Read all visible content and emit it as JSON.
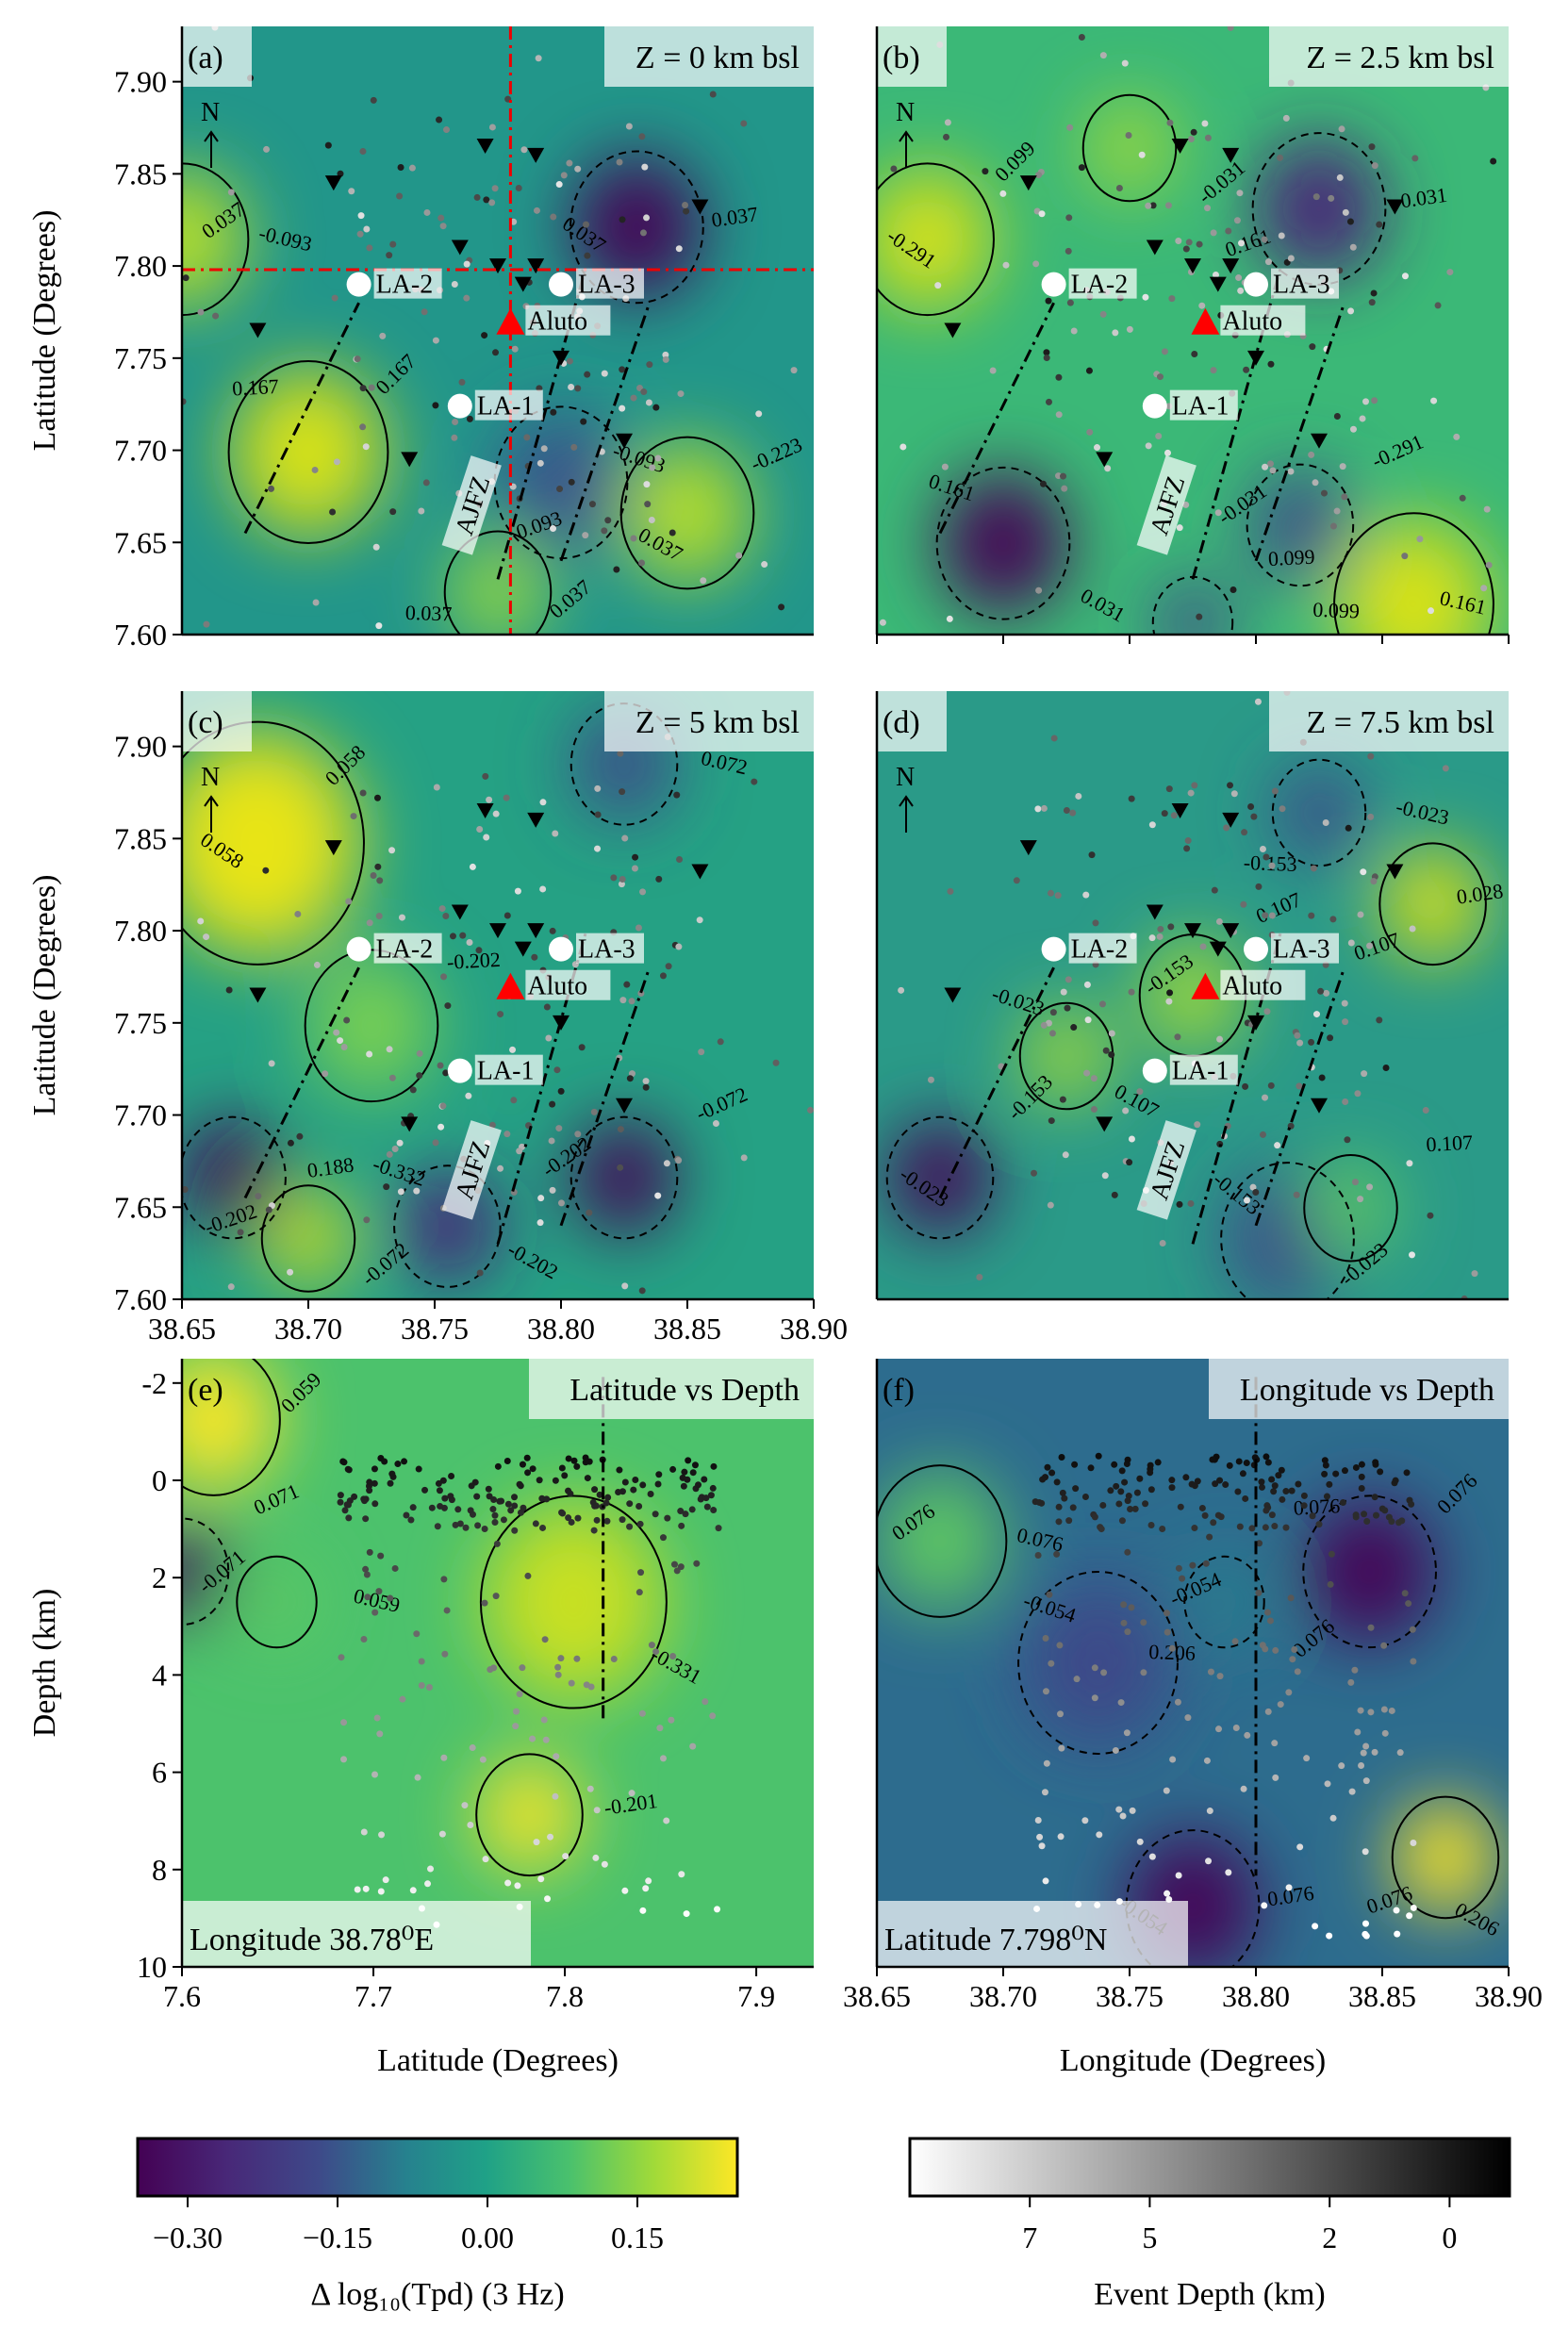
{
  "chart_data": [
    {
      "type": "heatmap",
      "panel": "(a)",
      "title": "Z = 0 km bsl",
      "xlim": [
        38.65,
        38.9
      ],
      "ylim": [
        7.6,
        7.93
      ],
      "ylabel": "Latitude (Degrees)",
      "yticks": [
        "7.60",
        "7.65",
        "7.70",
        "7.75",
        "7.80",
        "7.85",
        "7.90"
      ],
      "show_xticks": false,
      "north": "N",
      "fault_label": "AJFZ",
      "crosshair": {
        "lon": 38.78,
        "lat": 7.798
      },
      "contour_labels": [
        "0.167",
        "0.037",
        "0.037",
        "-0.223",
        "-0.093",
        "0.037",
        "0.167",
        "0.037",
        "0.093",
        "-0.093",
        "0.037",
        "0.037"
      ]
    },
    {
      "type": "heatmap",
      "panel": "(b)",
      "title": "Z = 2.5 km bsl",
      "xlim": [
        38.65,
        38.9
      ],
      "ylim": [
        7.6,
        7.93
      ],
      "ylabel": "",
      "show_xticks": false,
      "north": "N",
      "fault_label": "AJFZ",
      "contour_labels": [
        "0.099",
        "-0.031",
        "0.031",
        "-0.291",
        "0.161",
        "-0.031",
        "0.099",
        "-0.291",
        "0.161",
        "0.161",
        "-0.031",
        "0.099"
      ]
    },
    {
      "type": "heatmap",
      "panel": "(c)",
      "title": "Z = 5 km bsl",
      "xlim": [
        38.65,
        38.9
      ],
      "ylim": [
        7.6,
        7.93
      ],
      "ylabel": "Latitude (Degrees)",
      "yticks": [
        "7.60",
        "7.65",
        "7.70",
        "7.75",
        "7.80",
        "7.85",
        "7.90"
      ],
      "xticks": [
        "38.65",
        "38.70",
        "38.75",
        "38.80",
        "38.85",
        "38.90"
      ],
      "north": "N",
      "fault_label": "AJFZ",
      "contour_labels": [
        "0.058",
        "0.188",
        "-0.202",
        "-0.072",
        "0.072",
        "-0.072",
        "-0.202",
        "0.058",
        "-0.202",
        "-0.332",
        "-0.202"
      ]
    },
    {
      "type": "heatmap",
      "panel": "(d)",
      "title": "Z = 7.5 km bsl",
      "xlim": [
        38.65,
        38.9
      ],
      "ylim": [
        7.6,
        7.93
      ],
      "ylabel": "",
      "show_xticks": false,
      "north": "N",
      "fault_label": "AJFZ",
      "contour_labels": [
        "-0.153",
        "0.028",
        "0.107",
        "0.107",
        "-0.023",
        "-0.023",
        "0.107",
        "-0.023",
        "0.107",
        "-0.023",
        "-0.153",
        "-0.153",
        "-0.153"
      ]
    },
    {
      "type": "heatmap",
      "panel": "(e)",
      "title": "Latitude vs Depth",
      "xlim": [
        7.6,
        7.93
      ],
      "ylim": [
        10,
        -2.5
      ],
      "xlabel": "Latitude (Degrees)",
      "ylabel": "Depth (km)",
      "xticks": [
        "7.6",
        "7.7",
        "7.8",
        "7.9"
      ],
      "yticks": [
        "-2",
        "0",
        "2",
        "4",
        "6",
        "8",
        "10"
      ],
      "slice_label": "Longitude 38.78⁰E",
      "contour_labels": [
        "0.059",
        "-0.201",
        "-0.331",
        "0.071",
        "0.059",
        "-0.071"
      ]
    },
    {
      "type": "heatmap",
      "panel": "(f)",
      "title": "Longitude vs Depth",
      "xlim": [
        38.65,
        38.9
      ],
      "ylim": [
        10,
        -2.5
      ],
      "xlabel": "Longitude (Degrees)",
      "xticks": [
        "38.65",
        "38.70",
        "38.75",
        "38.80",
        "38.85",
        "38.90"
      ],
      "slice_label": "Latitude 7.798⁰N",
      "contour_labels": [
        "0.076",
        "0.076",
        "0.206",
        "-0.054",
        "0.076",
        "0.076",
        "0.076",
        "-0.054",
        "0.076",
        "-0.054",
        "0.076",
        "0.206"
      ]
    }
  ],
  "map_markers": {
    "stations": [
      {
        "label": "LA-2",
        "lon": 38.72,
        "lat": 7.79
      },
      {
        "label": "LA-3",
        "lon": 38.8,
        "lat": 7.79
      },
      {
        "label": "LA-1",
        "lon": 38.76,
        "lat": 7.724
      }
    ],
    "volcano": {
      "label": "Aluto",
      "lon": 38.78,
      "lat": 7.77,
      "color": "#ff0000"
    }
  },
  "colorbars": [
    {
      "label": "Δ log₁₀(Tpd) (3 Hz)",
      "colormap": "viridis",
      "range": [
        -0.35,
        0.25
      ],
      "ticks": [
        "−0.30",
        "−0.15",
        "0.00",
        "0.15"
      ],
      "tick_values": [
        -0.3,
        -0.15,
        0.0,
        0.15
      ]
    },
    {
      "label": "Event Depth (km)",
      "colormap": "greys",
      "range": [
        9,
        -1
      ],
      "ticks": [
        "7",
        "5",
        "2",
        "0"
      ],
      "tick_values": [
        7,
        5,
        2,
        0
      ]
    }
  ]
}
